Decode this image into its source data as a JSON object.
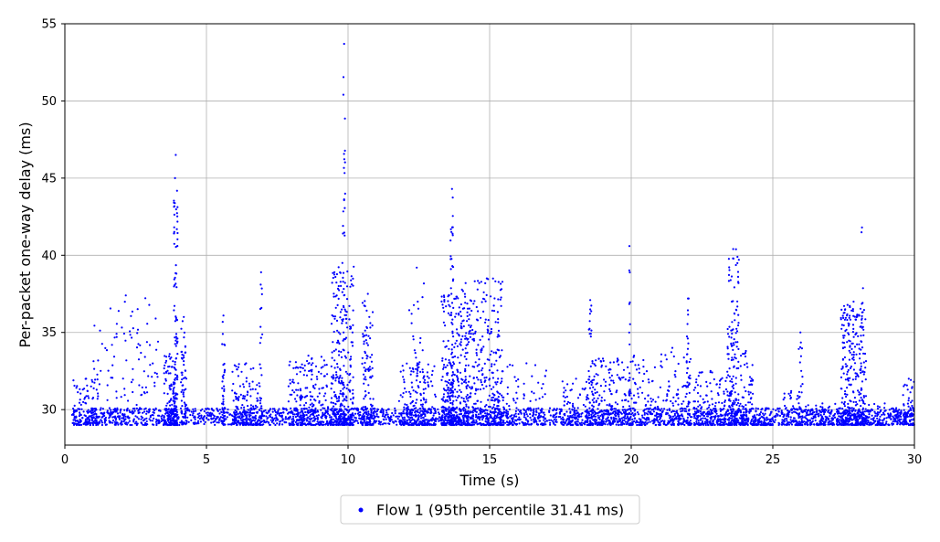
{
  "chart_data": {
    "type": "scatter",
    "xlabel": "Time (s)",
    "ylabel": "Per-packet one-way delay (ms)",
    "xlim": [
      0,
      30
    ],
    "ylim": [
      27.7,
      55
    ],
    "xticks": [
      0,
      5,
      10,
      15,
      20,
      25,
      30
    ],
    "yticks": [
      30,
      35,
      40,
      45,
      50,
      55
    ],
    "grid": true,
    "legend": {
      "position": "bottom-center",
      "entries": [
        "Flow 1 (95th percentile 31.41 ms)"
      ]
    },
    "series": [
      {
        "name": "Flow 1 (95th percentile 31.41 ms)",
        "color": "#0000ff",
        "baseline_band": [
          29.0,
          30.1
        ],
        "clusters": [
          {
            "x_range": [
              0.3,
              1.2
            ],
            "y_peak": 32.0,
            "count": 80
          },
          {
            "x_range": [
              1.0,
              3.3
            ],
            "y_peak": 37.4,
            "count": 140
          },
          {
            "x_range": [
              3.5,
              3.9
            ],
            "y_peak": 33.6,
            "count": 120
          },
          {
            "x_range": [
              3.85,
              3.98
            ],
            "y_peak": 46.5,
            "count": 120
          },
          {
            "x_range": [
              4.1,
              4.3
            ],
            "y_peak": 36.0,
            "count": 60
          },
          {
            "x_range": [
              5.55,
              5.65
            ],
            "y_peak": 36.1,
            "count": 40
          },
          {
            "x_range": [
              5.9,
              6.9
            ],
            "y_peak": 33.0,
            "count": 150
          },
          {
            "x_range": [
              6.88,
              6.98
            ],
            "y_peak": 38.9,
            "count": 30
          },
          {
            "x_range": [
              7.9,
              9.3
            ],
            "y_peak": 33.5,
            "count": 220
          },
          {
            "x_range": [
              9.4,
              10.2
            ],
            "y_peak": 39.5,
            "count": 300
          },
          {
            "x_range": [
              9.82,
              9.9
            ],
            "y_peak": 53.7,
            "count": 40
          },
          {
            "x_range": [
              10.5,
              10.9
            ],
            "y_peak": 37.5,
            "count": 120
          },
          {
            "x_range": [
              11.8,
              13.1
            ],
            "y_peak": 33.0,
            "count": 180
          },
          {
            "x_range": [
              12.15,
              12.7
            ],
            "y_peak": 39.2,
            "count": 50
          },
          {
            "x_range": [
              13.3,
              14.0
            ],
            "y_peak": 37.5,
            "count": 260
          },
          {
            "x_range": [
              13.62,
              13.72
            ],
            "y_peak": 44.3,
            "count": 70
          },
          {
            "x_range": [
              14.0,
              14.3
            ],
            "y_peak": 38.2,
            "count": 120
          },
          {
            "x_range": [
              14.3,
              15.5
            ],
            "y_peak": 38.5,
            "count": 320
          },
          {
            "x_range": [
              15.6,
              17.0
            ],
            "y_peak": 33.0,
            "count": 80
          },
          {
            "x_range": [
              17.5,
              18.6
            ],
            "y_peak": 32.0,
            "count": 100
          },
          {
            "x_range": [
              18.5,
              18.6
            ],
            "y_peak": 37.1,
            "count": 30
          },
          {
            "x_range": [
              18.6,
              19.4
            ],
            "y_peak": 33.3,
            "count": 150
          },
          {
            "x_range": [
              19.4,
              20.8
            ],
            "y_peak": 33.5,
            "count": 150
          },
          {
            "x_range": [
              19.9,
              19.97
            ],
            "y_peak": 40.6,
            "count": 25
          },
          {
            "x_range": [
              20.8,
              22.1
            ],
            "y_peak": 34.0,
            "count": 110
          },
          {
            "x_range": [
              21.95,
              22.1
            ],
            "y_peak": 37.2,
            "count": 40
          },
          {
            "x_range": [
              22.2,
              23.4
            ],
            "y_peak": 32.5,
            "count": 160
          },
          {
            "x_range": [
              23.4,
              23.8
            ],
            "y_peak": 40.4,
            "count": 170
          },
          {
            "x_range": [
              23.8,
              24.3
            ],
            "y_peak": 33.8,
            "count": 90
          },
          {
            "x_range": [
              24.3,
              25.0
            ],
            "y_peak": 29.5,
            "count": 60
          },
          {
            "x_range": [
              25.3,
              26.0
            ],
            "y_peak": 31.2,
            "count": 60
          },
          {
            "x_range": [
              25.9,
              26.05
            ],
            "y_peak": 35.0,
            "count": 30
          },
          {
            "x_range": [
              26.1,
              27.4
            ],
            "y_peak": 30.4,
            "count": 100
          },
          {
            "x_range": [
              27.4,
              28.3
            ],
            "y_peak": 37.0,
            "count": 320
          },
          {
            "x_range": [
              28.1,
              28.2
            ],
            "y_peak": 41.8,
            "count": 30
          },
          {
            "x_range": [
              28.3,
              29.6
            ],
            "y_peak": 30.4,
            "count": 80
          },
          {
            "x_range": [
              29.6,
              30.0
            ],
            "y_peak": 32.0,
            "count": 70
          }
        ]
      }
    ]
  }
}
